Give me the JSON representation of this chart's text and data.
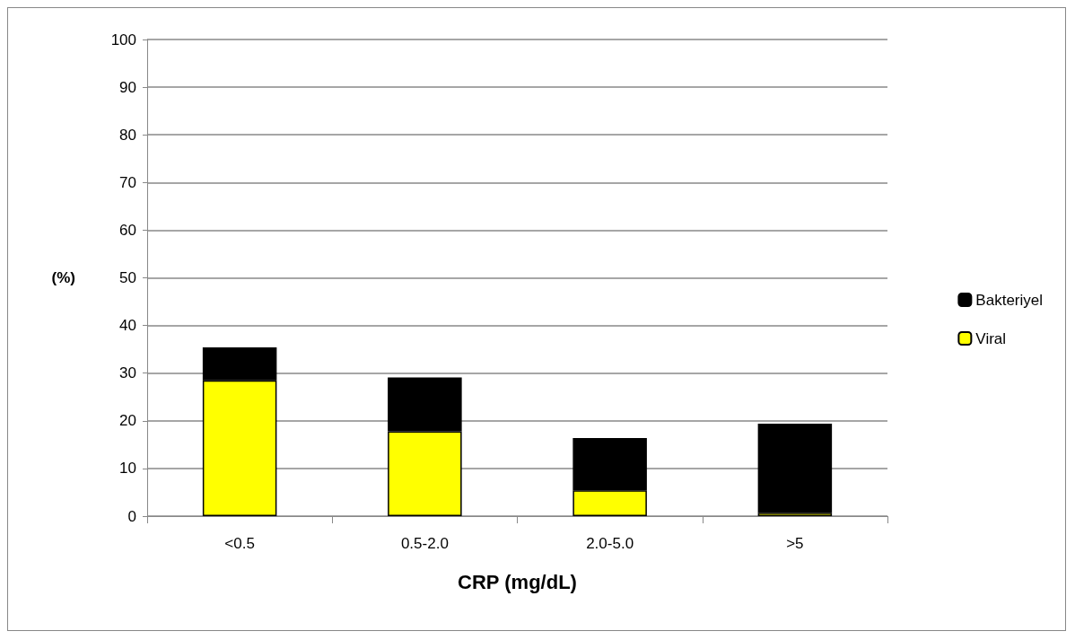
{
  "chart_data": {
    "type": "bar",
    "stacked": true,
    "xlabel": "CRP (mg/dL)",
    "ylabel": "(%)",
    "categories": [
      "<0.5",
      "0.5-2.0",
      "2.0-5.0",
      ">5"
    ],
    "series": [
      {
        "name": "Viral",
        "color": "#ffff00",
        "values": [
          28.5,
          17.8,
          5.4,
          0.7
        ]
      },
      {
        "name": "Bakteriyel",
        "color": "#000000",
        "values": [
          6.9,
          11.3,
          11.0,
          18.7
        ]
      }
    ],
    "ylim": [
      0,
      100
    ],
    "yticks": [
      0,
      10,
      20,
      30,
      40,
      50,
      60,
      70,
      80,
      90,
      100
    ],
    "grid": "y",
    "legend": "right"
  }
}
